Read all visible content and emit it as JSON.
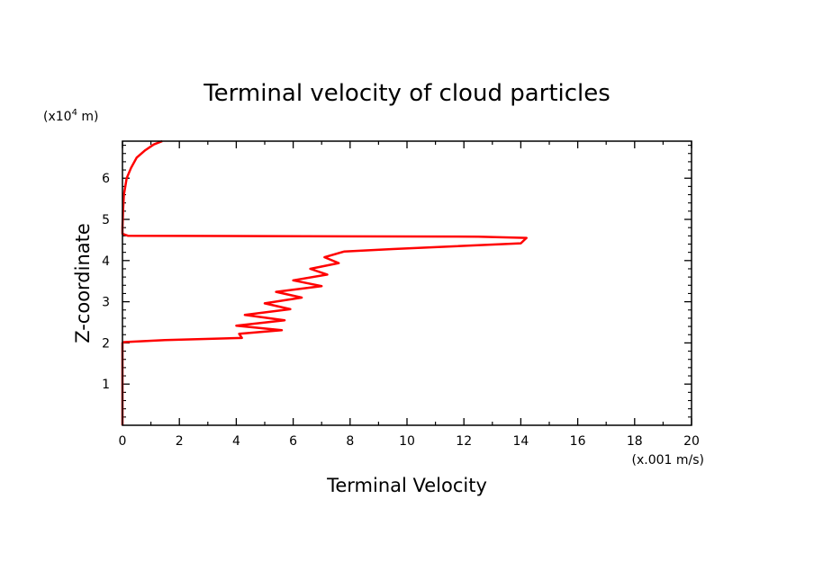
{
  "chart_data": {
    "type": "line",
    "title": "Terminal velocity of cloud particles",
    "xlabel": "Terminal Velocity",
    "ylabel": "Z-coordinate",
    "x_unit": "(x.001 m/s)",
    "y_unit_prefix": "(x10",
    "y_unit_exp": "4",
    "y_unit_suffix": " m)",
    "xlim": [
      0,
      20
    ],
    "ylim": [
      0,
      6.9
    ],
    "x_ticks": [
      0,
      2,
      4,
      6,
      8,
      10,
      12,
      14,
      16,
      18,
      20
    ],
    "y_ticks": [
      1,
      2,
      3,
      4,
      5,
      6
    ],
    "grid": false,
    "line_color": "#ff0000",
    "series": [
      {
        "x": [
          0,
          0,
          0.05,
          1.5,
          4.2,
          4.1,
          5.6,
          4.0,
          5.7,
          4.3,
          5.9,
          5.0,
          6.3,
          5.4,
          7.0,
          6.0,
          7.2,
          6.6,
          7.6,
          7.1,
          7.8,
          9.5,
          14.0,
          14.2,
          12.5,
          0.2,
          0,
          0,
          0.02,
          0.05,
          0.15,
          0.3,
          0.5,
          0.8,
          1.1,
          1.4
        ],
        "y": [
          0,
          2.0,
          2.02,
          2.07,
          2.12,
          2.22,
          2.31,
          2.42,
          2.55,
          2.68,
          2.82,
          2.96,
          3.1,
          3.24,
          3.38,
          3.52,
          3.66,
          3.8,
          3.94,
          4.08,
          4.22,
          4.28,
          4.42,
          4.55,
          4.58,
          4.6,
          4.65,
          4.8,
          5.2,
          5.6,
          6.0,
          6.25,
          6.5,
          6.68,
          6.82,
          6.9
        ]
      }
    ]
  }
}
